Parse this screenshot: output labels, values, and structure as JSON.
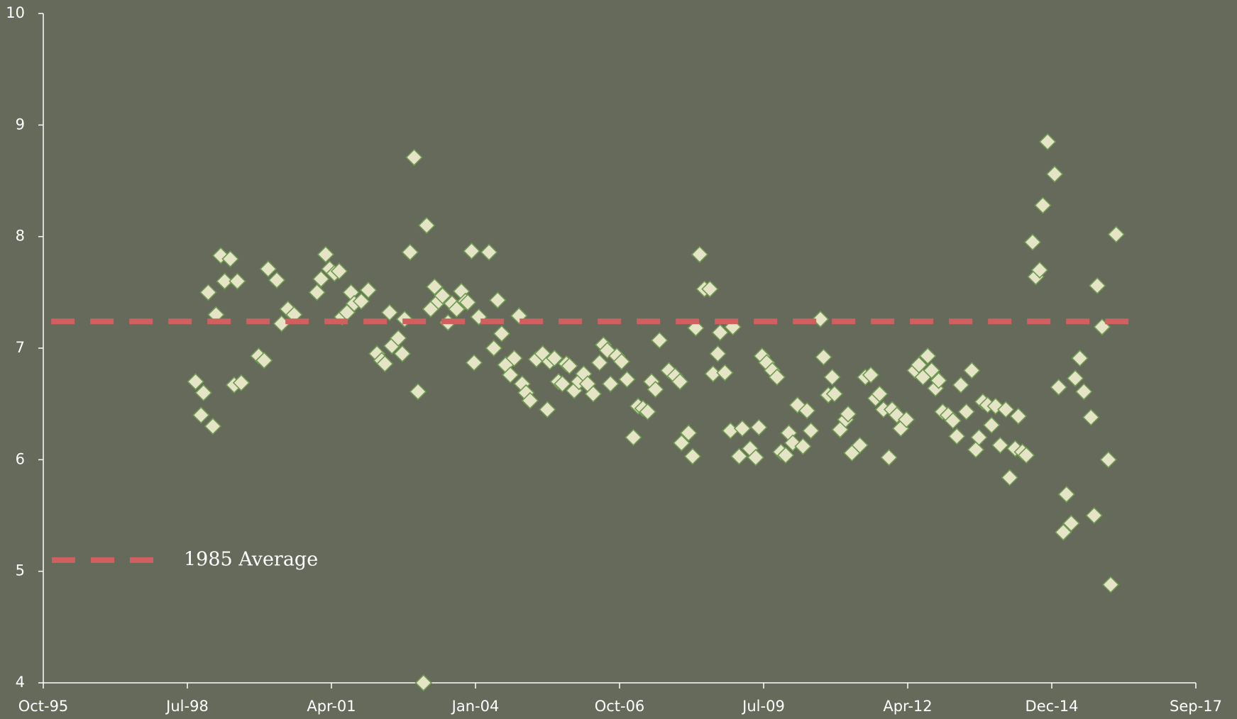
{
  "chart_data": {
    "type": "scatter",
    "xlim": [
      35000,
      43000
    ],
    "xticks": [
      {
        "value": 35000,
        "label": "Oct-95"
      },
      {
        "value": 36000,
        "label": "Jul-98"
      },
      {
        "value": 37000,
        "label": "Apr-01"
      },
      {
        "value": 38000,
        "label": "Jan-04"
      },
      {
        "value": 39000,
        "label": "Oct-06"
      },
      {
        "value": 40000,
        "label": "Jul-09"
      },
      {
        "value": 41000,
        "label": "Apr-12"
      },
      {
        "value": 42000,
        "label": "Dec-14"
      },
      {
        "value": 43000,
        "label": "Sep-17"
      }
    ],
    "ylim": [
      4,
      10
    ],
    "yticks": [
      4,
      5,
      6,
      7,
      8,
      9,
      10
    ],
    "legend": "lower left",
    "series": [
      {
        "type": "scatter",
        "color": "#e6e4c6",
        "edge_color": "#6e9a52",
        "x": [
          36057,
          36112,
          36095,
          36145,
          36177,
          36199,
          36232,
          36259,
          36298,
          36325,
          36347,
          36374,
          36495,
          36533,
          36561,
          36621,
          36654,
          36698,
          36741,
          36900,
          36928,
          36960,
          36988,
          37021,
          37054,
          37075,
          37108,
          37136,
          37158,
          37207,
          37256,
          37316,
          37349,
          37371,
          37404,
          37420,
          37464,
          37492,
          37508,
          37546,
          37574,
          37601,
          37639,
          37661,
          37689,
          37716,
          37743,
          37771,
          37809,
          37837,
          37869,
          37902,
          37930,
          37946,
          37973,
          37990,
          38023,
          38094,
          38127,
          38154,
          38182,
          38209,
          38242,
          38269,
          38302,
          38324,
          38351,
          38379,
          38423,
          38466,
          38499,
          38516,
          38548,
          38576,
          38603,
          38631,
          38652,
          38685,
          38718,
          38751,
          38778,
          38817,
          38861,
          38888,
          38915,
          38937,
          38981,
          39014,
          39052,
          39096,
          39129,
          39162,
          39195,
          39222,
          39249,
          39277,
          39342,
          39386,
          39419,
          39430,
          39479,
          39507,
          39529,
          39556,
          39589,
          39627,
          39649,
          39682,
          39698,
          39731,
          39770,
          39786,
          39830,
          39852,
          39906,
          39945,
          39967,
          39989,
          40021,
          40060,
          40093,
          40120,
          40153,
          40175,
          40202,
          40235,
          40273,
          40301,
          40328,
          40394,
          40416,
          40449,
          40476,
          40492,
          40531,
          40569,
          40586,
          40613,
          40668,
          40706,
          40744,
          40777,
          40805,
          40832,
          40870,
          40892,
          40925,
          40952,
          40991,
          41051,
          41078,
          41106,
          41139,
          41166,
          41193,
          41215,
          41243,
          41281,
          41314,
          41341,
          41369,
          41407,
          41445,
          41473,
          41495,
          41522,
          41555,
          41582,
          41610,
          41642,
          41681,
          41708,
          41746,
          41768,
          41796,
          41823,
          41867,
          41889,
          41916,
          41938,
          41971,
          42020,
          42048,
          42080,
          42102,
          42135,
          42163,
          42195,
          42223,
          42272,
          42294,
          42316,
          42349,
          42393,
          42409,
          42447
        ],
        "values": [
          6.7,
          6.6,
          6.4,
          7.5,
          6.3,
          7.3,
          7.83,
          7.6,
          7.8,
          6.67,
          7.6,
          6.69,
          6.93,
          6.89,
          7.71,
          7.61,
          7.22,
          7.35,
          7.3,
          7.5,
          7.62,
          7.84,
          7.71,
          7.67,
          7.69,
          7.28,
          7.32,
          7.5,
          7.4,
          7.42,
          7.52,
          6.95,
          6.89,
          6.86,
          7.32,
          7.02,
          7.09,
          6.95,
          7.26,
          7.86,
          8.71,
          6.61,
          4.0,
          8.1,
          7.35,
          7.55,
          7.42,
          7.47,
          7.23,
          7.4,
          7.35,
          7.51,
          7.42,
          7.41,
          7.87,
          6.87,
          7.28,
          7.86,
          7.0,
          7.43,
          7.13,
          6.85,
          6.76,
          6.91,
          7.29,
          6.68,
          6.6,
          6.53,
          6.9,
          6.95,
          6.45,
          6.88,
          6.91,
          6.7,
          6.68,
          6.86,
          6.84,
          6.62,
          6.7,
          6.77,
          6.68,
          6.59,
          6.87,
          7.03,
          6.98,
          6.68,
          6.93,
          6.88,
          6.72,
          6.2,
          6.48,
          6.46,
          6.43,
          6.7,
          6.63,
          7.07,
          6.8,
          6.75,
          6.7,
          6.15,
          6.24,
          6.03,
          7.18,
          7.84,
          7.53,
          7.53,
          6.77,
          6.95,
          7.14,
          6.78,
          6.26,
          7.19,
          6.03,
          6.28,
          6.1,
          6.02,
          6.29,
          6.93,
          6.87,
          6.8,
          6.74,
          6.07,
          6.04,
          6.24,
          6.15,
          6.49,
          6.12,
          6.44,
          6.26,
          7.26,
          6.92,
          6.58,
          6.74,
          6.59,
          6.27,
          6.36,
          6.41,
          6.06,
          6.13,
          6.74,
          6.76,
          6.55,
          6.59,
          6.45,
          6.02,
          6.45,
          6.4,
          6.28,
          6.36,
          6.8,
          6.85,
          6.74,
          6.93,
          6.8,
          6.64,
          6.71,
          6.43,
          6.4,
          6.35,
          6.21,
          6.67,
          6.43,
          6.8,
          6.09,
          6.2,
          6.52,
          6.49,
          6.31,
          6.48,
          6.13,
          6.45,
          5.84,
          6.1,
          6.39,
          6.07,
          6.04,
          7.95,
          7.64,
          7.7,
          8.28,
          8.85,
          8.56,
          6.65,
          5.35,
          5.69,
          5.43,
          6.73,
          6.91,
          6.61,
          6.38,
          5.5,
          7.56,
          7.19,
          6.0,
          4.88,
          8.02
        ]
      },
      {
        "name": "1985 Average",
        "type": "line",
        "color": "#d05f5f",
        "dashed": true,
        "x": [
          35055,
          42612
        ],
        "values": [
          7.24,
          7.24
        ]
      }
    ]
  }
}
